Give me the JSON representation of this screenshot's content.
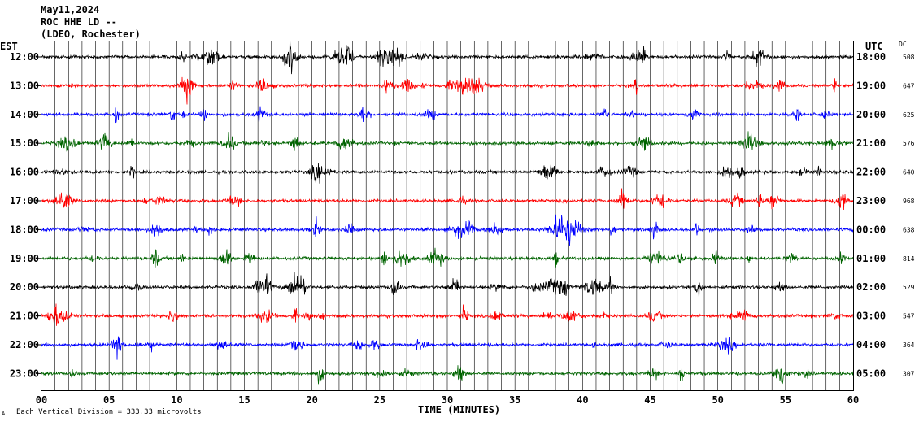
{
  "chart_data": {
    "type": "line",
    "header": {
      "date": "May11,2024",
      "station": "ROC HHE LD --",
      "network": "(LDEO, Rochester)"
    },
    "left_axis_label": "EST",
    "right_axis_label": "UTC",
    "dc_label": "DC",
    "xlabel": "TIME (MINUTES)",
    "footnote": "Each Vertical Division =  333.33 microvolts",
    "corner_mark": "A",
    "xlim": [
      0,
      60
    ],
    "x_ticks": [
      "00",
      "05",
      "10",
      "15",
      "20",
      "25",
      "30",
      "35",
      "40",
      "45",
      "50",
      "55",
      "60"
    ],
    "trace_colors": [
      "#000000",
      "#ff0000",
      "#0000ff",
      "#006400"
    ],
    "rows": [
      {
        "est": "12:00",
        "utc": "18:00",
        "dc": "508"
      },
      {
        "est": "13:00",
        "utc": "19:00",
        "dc": "647"
      },
      {
        "est": "14:00",
        "utc": "20:00",
        "dc": "625"
      },
      {
        "est": "15:00",
        "utc": "21:00",
        "dc": "576"
      },
      {
        "est": "16:00",
        "utc": "22:00",
        "dc": "640"
      },
      {
        "est": "17:00",
        "utc": "23:00",
        "dc": "968"
      },
      {
        "est": "18:00",
        "utc": "00:00",
        "dc": "638"
      },
      {
        "est": "19:00",
        "utc": "01:00",
        "dc": "814"
      },
      {
        "est": "20:00",
        "utc": "02:00",
        "dc": "529"
      },
      {
        "est": "21:00",
        "utc": "03:00",
        "dc": "547"
      },
      {
        "est": "22:00",
        "utc": "04:00",
        "dc": "364"
      },
      {
        "est": "23:00",
        "utc": "05:00",
        "dc": "307"
      }
    ]
  }
}
